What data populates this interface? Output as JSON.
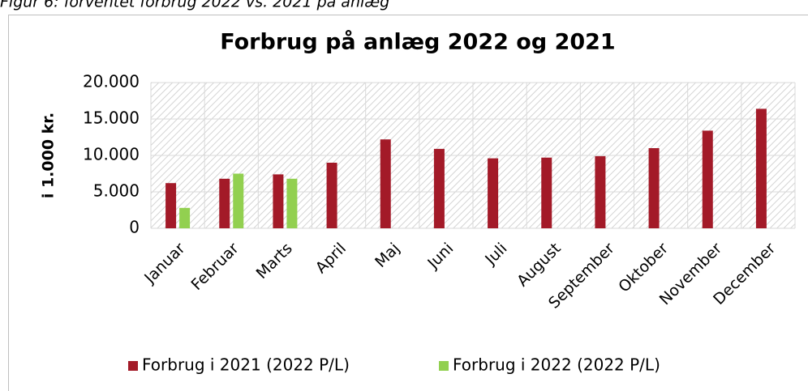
{
  "caption": "Figur 6: forventet forbrug 2022 vs. 2021 på anlæg",
  "chart_data": {
    "type": "bar",
    "title": "Forbrug på anlæg 2022 og 2021",
    "y_label": "i 1.000 kr.",
    "categories": [
      "Januar",
      "Februar",
      "Marts",
      "April",
      "Maj",
      "Juni",
      "Juli",
      "August",
      "September",
      "Oktober",
      "November",
      "December"
    ],
    "series": [
      {
        "name": "Forbrug i 2021 (2022 P/L)",
        "color": "#a31a28",
        "values": [
          6200,
          6800,
          7400,
          9000,
          12200,
          10900,
          9600,
          9700,
          9900,
          11000,
          13400,
          16400
        ]
      },
      {
        "name": "Forbrug i 2022 (2022 P/L)",
        "color": "#92d050",
        "values": [
          2800,
          7500,
          6800,
          null,
          null,
          null,
          null,
          null,
          null,
          null,
          null,
          null
        ]
      }
    ],
    "ylim": [
      0,
      20000
    ],
    "yticks": [
      0,
      {
        "value": 5000,
        "label": "5.000"
      },
      {
        "value": 10000,
        "label": "10.000"
      },
      {
        "value": 15000,
        "label": "15.000"
      },
      {
        "value": 20000,
        "label": "20.000"
      }
    ],
    "grid": true,
    "legend": "bottom"
  }
}
